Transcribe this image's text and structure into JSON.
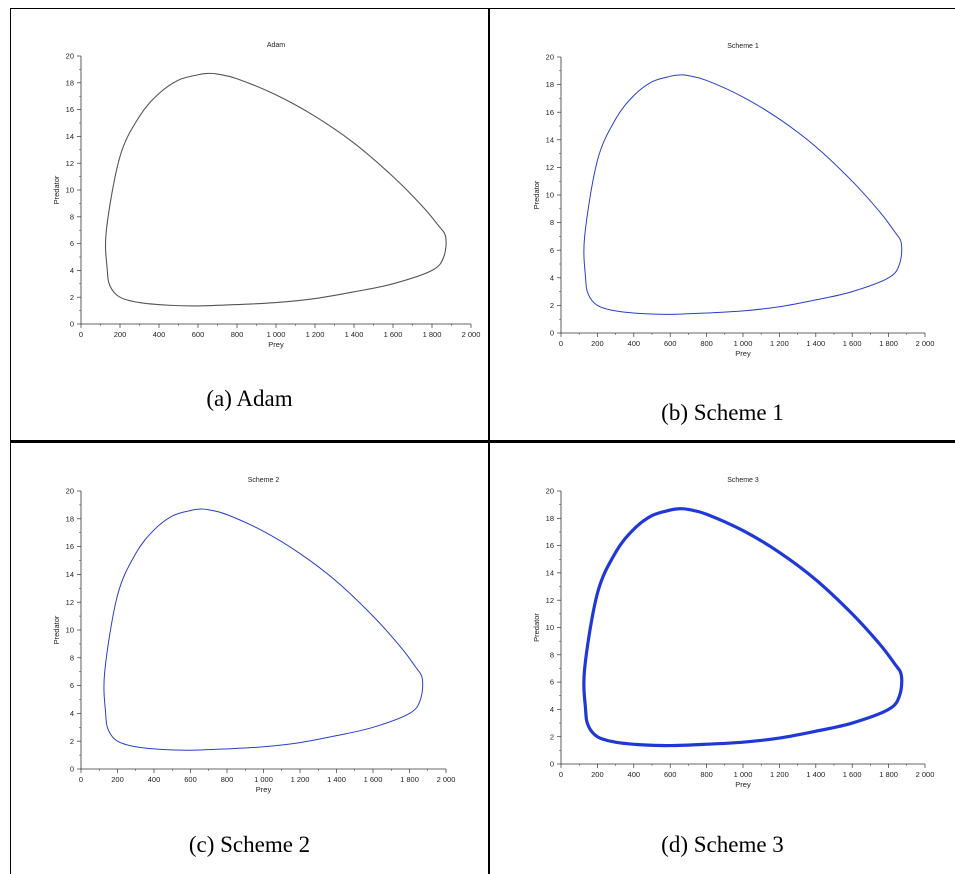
{
  "chart_data": [
    {
      "type": "line",
      "title": "Adam",
      "xlabel": "Prey",
      "ylabel": "Predator",
      "xlim": [
        0,
        2000
      ],
      "ylim": [
        0,
        20
      ],
      "xticks": [
        0,
        200,
        400,
        600,
        800,
        1000,
        1200,
        1400,
        1600,
        1800,
        2000
      ],
      "xtick_labels": [
        "0",
        "200",
        "400",
        "600",
        "800",
        "1 000",
        "1 200",
        "1 400",
        "1 600",
        "1 800",
        "2 000"
      ],
      "yticks": [
        0,
        2,
        4,
        6,
        8,
        10,
        12,
        14,
        16,
        18,
        20
      ],
      "ytick_labels": [
        "0",
        "2",
        "4",
        "6",
        "8",
        "10",
        "12",
        "14",
        "16",
        "18",
        "20"
      ],
      "grid": false,
      "caption_label": "(a)",
      "caption_text": "Adam",
      "series": [
        {
          "color": "#555555",
          "x": [
            130,
            200,
            300,
            400,
            500,
            600,
            650,
            700,
            800,
            1000,
            1200,
            1400,
            1600,
            1750,
            1830,
            1870,
            1860,
            1800,
            1600,
            1400,
            1200,
            1000,
            800,
            600,
            450,
            300,
            200,
            150,
            135,
            130
          ],
          "y": [
            7,
            12.5,
            15.5,
            17.2,
            18.2,
            18.6,
            18.7,
            18.65,
            18.3,
            17.1,
            15.5,
            13.5,
            11,
            8.8,
            7.4,
            6.5,
            5,
            4,
            3,
            2.4,
            1.9,
            1.6,
            1.45,
            1.35,
            1.4,
            1.6,
            2,
            2.8,
            4,
            7
          ]
        }
      ]
    },
    {
      "type": "line",
      "title": "Scheme 1",
      "xlabel": "Prey",
      "ylabel": "Predator",
      "xlim": [
        0,
        2000
      ],
      "ylim": [
        0,
        20
      ],
      "xticks": [
        0,
        200,
        400,
        600,
        800,
        1000,
        1200,
        1400,
        1600,
        1800,
        2000
      ],
      "xtick_labels": [
        "0",
        "200",
        "400",
        "600",
        "800",
        "1 000",
        "1 200",
        "1 400",
        "1 600",
        "1 800",
        "2 000"
      ],
      "yticks": [
        0,
        2,
        4,
        6,
        8,
        10,
        12,
        14,
        16,
        18,
        20
      ],
      "ytick_labels": [
        "0",
        "2",
        "4",
        "6",
        "8",
        "10",
        "12",
        "14",
        "16",
        "18",
        "20"
      ],
      "grid": false,
      "caption_label": "(b)",
      "caption_text": "Scheme 1",
      "series": [
        {
          "color": "#2a3fc8",
          "x": [
            130,
            200,
            300,
            400,
            500,
            600,
            650,
            700,
            800,
            1000,
            1200,
            1400,
            1600,
            1750,
            1830,
            1870,
            1860,
            1800,
            1600,
            1400,
            1200,
            1000,
            800,
            600,
            450,
            300,
            200,
            150,
            135,
            130
          ],
          "y": [
            7,
            12.5,
            15.5,
            17.2,
            18.2,
            18.6,
            18.7,
            18.65,
            18.3,
            17.1,
            15.5,
            13.5,
            11,
            8.8,
            7.4,
            6.5,
            5,
            4,
            3,
            2.4,
            1.9,
            1.6,
            1.45,
            1.35,
            1.4,
            1.6,
            2,
            2.8,
            4,
            7
          ]
        }
      ]
    },
    {
      "type": "line",
      "title": "Scheme 2",
      "xlabel": "Prey",
      "ylabel": "Predator",
      "xlim": [
        0,
        2000
      ],
      "ylim": [
        0,
        20
      ],
      "xticks": [
        0,
        200,
        400,
        600,
        800,
        1000,
        1200,
        1400,
        1600,
        1800,
        2000
      ],
      "xtick_labels": [
        "0",
        "200",
        "400",
        "600",
        "800",
        "1 000",
        "1 200",
        "1 400",
        "1 600",
        "1 800",
        "2 000"
      ],
      "yticks": [
        0,
        2,
        4,
        6,
        8,
        10,
        12,
        14,
        16,
        18,
        20
      ],
      "ytick_labels": [
        "0",
        "2",
        "4",
        "6",
        "8",
        "10",
        "12",
        "14",
        "16",
        "18",
        "20"
      ],
      "grid": false,
      "caption_label": "(c)",
      "caption_text": "Scheme 2",
      "series": [
        {
          "color": "#2a3fc8",
          "x": [
            130,
            200,
            300,
            400,
            500,
            600,
            650,
            700,
            800,
            1000,
            1200,
            1400,
            1600,
            1750,
            1830,
            1870,
            1860,
            1800,
            1600,
            1400,
            1200,
            1000,
            800,
            600,
            450,
            300,
            200,
            150,
            135,
            130
          ],
          "y": [
            7,
            12.5,
            15.5,
            17.2,
            18.2,
            18.6,
            18.7,
            18.65,
            18.3,
            17.1,
            15.5,
            13.5,
            11,
            8.8,
            7.4,
            6.5,
            5,
            4,
            3,
            2.4,
            1.9,
            1.6,
            1.45,
            1.35,
            1.4,
            1.6,
            2,
            2.8,
            4,
            7
          ]
        }
      ]
    },
    {
      "type": "line",
      "title": "Scheme 3",
      "xlabel": "Prey",
      "ylabel": "Predator",
      "xlim": [
        0,
        2000
      ],
      "ylim": [
        0,
        20
      ],
      "xticks": [
        0,
        200,
        400,
        600,
        800,
        1000,
        1200,
        1400,
        1600,
        1800,
        2000
      ],
      "xtick_labels": [
        "0",
        "200",
        "400",
        "600",
        "800",
        "1 000",
        "1 200",
        "1 400",
        "1 600",
        "1 800",
        "2 000"
      ],
      "yticks": [
        0,
        2,
        4,
        6,
        8,
        10,
        12,
        14,
        16,
        18,
        20
      ],
      "ytick_labels": [
        "0",
        "2",
        "4",
        "6",
        "8",
        "10",
        "12",
        "14",
        "16",
        "18",
        "20"
      ],
      "grid": false,
      "caption_label": "(d)",
      "caption_text": "Scheme 3",
      "series": [
        {
          "color": "#1f38d6",
          "x": [
            130,
            200,
            300,
            400,
            500,
            600,
            650,
            700,
            800,
            1000,
            1200,
            1400,
            1600,
            1750,
            1830,
            1870,
            1860,
            1800,
            1600,
            1400,
            1200,
            1000,
            800,
            600,
            450,
            300,
            200,
            150,
            135,
            130
          ],
          "y": [
            7,
            12.5,
            15.5,
            17.2,
            18.2,
            18.6,
            18.7,
            18.65,
            18.3,
            17.1,
            15.5,
            13.5,
            11,
            8.8,
            7.4,
            6.5,
            5,
            4,
            3,
            2.4,
            1.9,
            1.6,
            1.45,
            1.35,
            1.4,
            1.6,
            2,
            2.8,
            4,
            7
          ]
        }
      ]
    }
  ]
}
